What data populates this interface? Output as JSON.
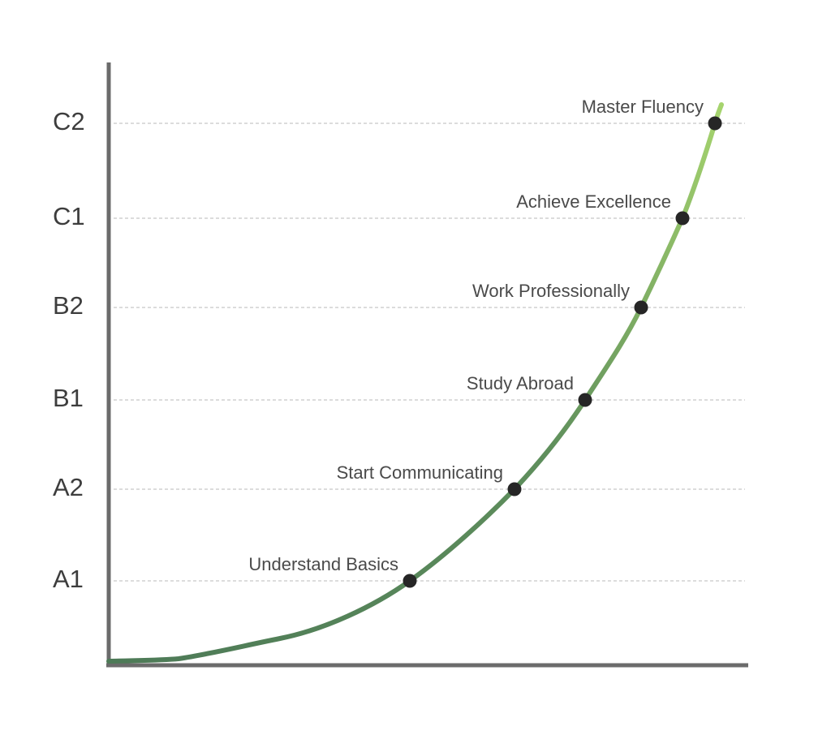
{
  "chart_data": {
    "type": "line",
    "title": "",
    "xlabel": "",
    "ylabel": "",
    "y_tick_labels": [
      "A1",
      "A2",
      "B1",
      "B2",
      "C1",
      "C2"
    ],
    "milestones": [
      {
        "label": "Understand Basics",
        "level": "A1"
      },
      {
        "label": "Start Communicating",
        "level": "A2"
      },
      {
        "label": "Study Abroad",
        "level": "B1"
      },
      {
        "label": "Work Professionally",
        "level": "B2"
      },
      {
        "label": "Achieve Excellence",
        "level": "C1"
      },
      {
        "label": "Master Fluency",
        "level": "C2"
      }
    ],
    "grid": "horizontal dashed",
    "legend": "none",
    "colors": {
      "axis": "#6b6b6b",
      "grid": "#c8c8c8",
      "curve_start": "#4d7a57",
      "curve_end": "#a6d46e",
      "point": "#262626",
      "text": "#3d3d3d"
    }
  }
}
